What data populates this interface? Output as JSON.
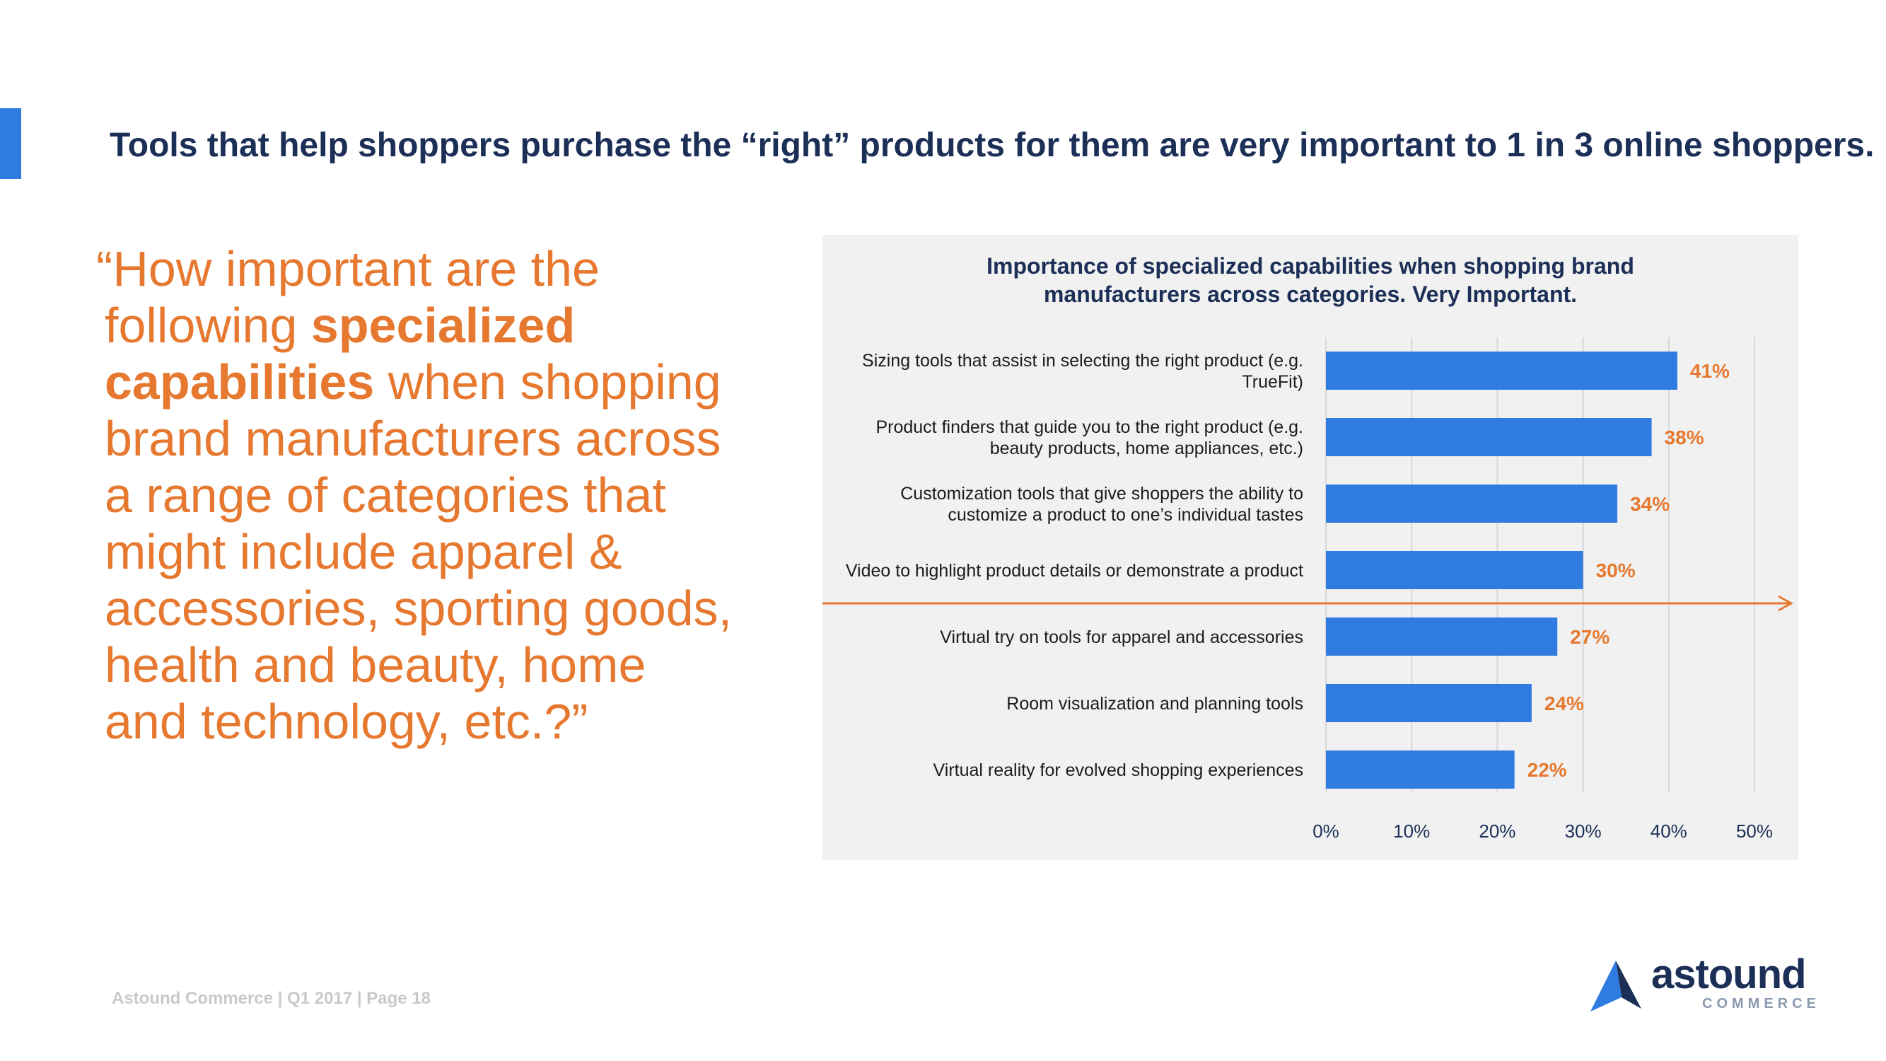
{
  "slide": {
    "headline": "Tools that help shoppers purchase the “right” products for them are very important to 1 in 3 online shoppers.",
    "footer": "Astound Commerce | Q1 2017 | Page 18",
    "accent_color": "#2f7be0",
    "headline_color": "#1c2f57",
    "question_color": "#e6782f"
  },
  "question": {
    "part1_quote": "“",
    "part1": "How important are the following ",
    "bold": "specialized capabilities",
    "part2": " when shopping brand manufacturers across a range of categories that might include apparel & accessories, sporting goods, health and beauty, home and technology, etc.?”"
  },
  "logo": {
    "word": "astound",
    "sub": "COMMERCE",
    "icon": "triangle-logo-icon"
  },
  "chart_data": {
    "type": "bar",
    "orientation": "horizontal",
    "title_line1": "Importance of specialized capabilities when shopping brand",
    "title_line2": "manufacturers across categories. Very Important.",
    "categories": [
      [
        "Sizing tools that assist in selecting the right product (e.g.",
        "TrueFit)"
      ],
      [
        "Product finders that guide you to the right product (e.g.",
        "beauty products, home appliances, etc.)"
      ],
      [
        "Customization tools that give shoppers the ability to",
        "customize a product to one’s individual tastes"
      ],
      [
        "Video to highlight product details or demonstrate a product"
      ],
      [
        "Virtual try on tools for apparel and accessories"
      ],
      [
        "Room visualization and planning tools"
      ],
      [
        "Virtual reality for evolved shopping experiences"
      ]
    ],
    "values": [
      41,
      38,
      34,
      30,
      27,
      24,
      22
    ],
    "value_labels": [
      "41%",
      "38%",
      "34%",
      "30%",
      "27%",
      "24%",
      "22%"
    ],
    "xlim": [
      0,
      50
    ],
    "xticks": [
      0,
      10,
      20,
      30,
      40,
      50
    ],
    "xtick_labels": [
      "0%",
      "10%",
      "20%",
      "30%",
      "40%",
      "50%"
    ],
    "grid": true,
    "bar_color": "#2f7be0",
    "label_color": "#e6782f",
    "divider_after_index": 3,
    "divider_color": "#e6782f"
  }
}
